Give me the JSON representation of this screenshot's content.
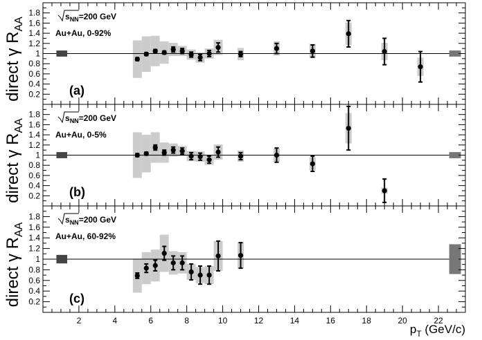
{
  "colors": {
    "sys_box": "#cccccc",
    "norm_box_left": "#444444",
    "norm_box_right": "#777777",
    "marker": "#000000"
  },
  "x_axis": {
    "label_main": "p",
    "label_sub": "T",
    "label_unit": " (GeV/c)",
    "tick_labels": [
      "2",
      "4",
      "6",
      "8",
      "10",
      "12",
      "14",
      "16",
      "18",
      "20",
      "22"
    ]
  },
  "y_axis": {
    "tick_labels": [
      "0.2",
      "0.4",
      "0.6",
      "0.8",
      "1",
      "1.2",
      "1.4",
      "1.6",
      "1.8"
    ]
  },
  "chart_data": [
    {
      "type": "scatter",
      "panel": "(a)",
      "ylabel_main": "direct γ R",
      "ylabel_sub": "AA",
      "annotation_energy": "=200 GeV",
      "annotation_energy_sqrt": "s",
      "annotation_energy_sub": "NN",
      "annotation_system": "Au+Au, 0-92%",
      "xlim": [
        0,
        23.5
      ],
      "ylim": [
        0,
        2
      ],
      "norm_left": 0.06,
      "norm_right": 0.06,
      "points": [
        {
          "x": 5.25,
          "y": 0.89,
          "stat": 0.03,
          "sys": 0.37
        },
        {
          "x": 5.75,
          "y": 0.99,
          "stat": 0.03,
          "sys": 0.35
        },
        {
          "x": 6.25,
          "y": 1.05,
          "stat": 0.03,
          "sys": 0.3
        },
        {
          "x": 6.75,
          "y": 1.02,
          "stat": 0.03,
          "sys": 0.22
        },
        {
          "x": 7.25,
          "y": 1.08,
          "stat": 0.05,
          "sys": 0.13
        },
        {
          "x": 7.75,
          "y": 1.05,
          "stat": 0.05,
          "sys": 0.1
        },
        {
          "x": 8.25,
          "y": 0.98,
          "stat": 0.05,
          "sys": 0.1
        },
        {
          "x": 8.75,
          "y": 0.92,
          "stat": 0.06,
          "sys": 0.1
        },
        {
          "x": 9.25,
          "y": 1.0,
          "stat": 0.06,
          "sys": 0.1
        },
        {
          "x": 9.75,
          "y": 1.12,
          "stat": 0.09,
          "sys": 0.15
        },
        {
          "x": 11.0,
          "y": 0.99,
          "stat": 0.05,
          "sys": 0.12
        },
        {
          "x": 13.0,
          "y": 1.1,
          "stat": 0.1,
          "sys": 0.14
        },
        {
          "x": 15.0,
          "y": 1.05,
          "stat": 0.12,
          "sys": 0.14
        },
        {
          "x": 17.0,
          "y": 1.39,
          "stat": 0.26,
          "sys": 0.22
        },
        {
          "x": 19.0,
          "y": 1.04,
          "stat": 0.26,
          "sys": 0.17
        },
        {
          "x": 21.0,
          "y": 0.74,
          "stat": 0.3,
          "sys": 0.18
        }
      ]
    },
    {
      "type": "scatter",
      "panel": "(b)",
      "ylabel_main": "direct γ R",
      "ylabel_sub": "AA",
      "annotation_energy": "=200 GeV",
      "annotation_energy_sqrt": "s",
      "annotation_energy_sub": "NN",
      "annotation_system": "Au+Au, 0-5%",
      "xlim": [
        0,
        23.5
      ],
      "ylim": [
        0,
        2
      ],
      "norm_left": 0.06,
      "norm_right": 0.06,
      "points": [
        {
          "x": 5.25,
          "y": 1.0,
          "stat": 0.03,
          "sys": 0.45
        },
        {
          "x": 5.75,
          "y": 1.03,
          "stat": 0.03,
          "sys": 0.37
        },
        {
          "x": 6.25,
          "y": 1.15,
          "stat": 0.05,
          "sys": 0.3
        },
        {
          "x": 6.75,
          "y": 1.05,
          "stat": 0.05,
          "sys": 0.2
        },
        {
          "x": 7.25,
          "y": 1.1,
          "stat": 0.06,
          "sys": 0.13
        },
        {
          "x": 7.75,
          "y": 1.08,
          "stat": 0.06,
          "sys": 0.1
        },
        {
          "x": 8.25,
          "y": 0.98,
          "stat": 0.07,
          "sys": 0.1
        },
        {
          "x": 8.75,
          "y": 0.97,
          "stat": 0.07,
          "sys": 0.1
        },
        {
          "x": 9.25,
          "y": 0.91,
          "stat": 0.07,
          "sys": 0.1
        },
        {
          "x": 9.75,
          "y": 1.06,
          "stat": 0.1,
          "sys": 0.15
        },
        {
          "x": 11.0,
          "y": 0.98,
          "stat": 0.07,
          "sys": 0.11
        },
        {
          "x": 13.0,
          "y": 1.0,
          "stat": 0.14,
          "sys": 0.13
        },
        {
          "x": 15.0,
          "y": 0.83,
          "stat": 0.15,
          "sys": 0.13
        },
        {
          "x": 17.0,
          "y": 1.53,
          "stat": 0.43,
          "sys": 0.3
        },
        {
          "x": 19.0,
          "y": 0.3,
          "stat": 0.23,
          "sys": 0.06
        }
      ]
    },
    {
      "type": "scatter",
      "panel": "(c)",
      "ylabel_main": "direct γ R",
      "ylabel_sub": "AA",
      "annotation_energy": "=200 GeV",
      "annotation_energy_sqrt": "s",
      "annotation_energy_sub": "NN",
      "annotation_system": "Au+Au, 60-92%",
      "xlim": [
        0,
        23.5
      ],
      "ylim": [
        0,
        2
      ],
      "norm_left": 0.08,
      "norm_right": 0.28,
      "points": [
        {
          "x": 5.25,
          "y": 0.69,
          "stat": 0.05,
          "sys": 0.32
        },
        {
          "x": 5.75,
          "y": 0.83,
          "stat": 0.08,
          "sys": 0.3
        },
        {
          "x": 6.25,
          "y": 0.88,
          "stat": 0.1,
          "sys": 0.3
        },
        {
          "x": 6.75,
          "y": 1.11,
          "stat": 0.13,
          "sys": 0.35
        },
        {
          "x": 7.25,
          "y": 0.93,
          "stat": 0.13,
          "sys": 0.22
        },
        {
          "x": 7.75,
          "y": 0.93,
          "stat": 0.13,
          "sys": 0.2
        },
        {
          "x": 8.25,
          "y": 0.76,
          "stat": 0.15,
          "sys": 0.15
        },
        {
          "x": 8.75,
          "y": 0.7,
          "stat": 0.17,
          "sys": 0.15
        },
        {
          "x": 9.25,
          "y": 0.7,
          "stat": 0.17,
          "sys": 0.17
        },
        {
          "x": 9.75,
          "y": 1.06,
          "stat": 0.28,
          "sys": 0.28
        },
        {
          "x": 11.0,
          "y": 1.07,
          "stat": 0.24,
          "sys": 0.25
        }
      ]
    }
  ]
}
